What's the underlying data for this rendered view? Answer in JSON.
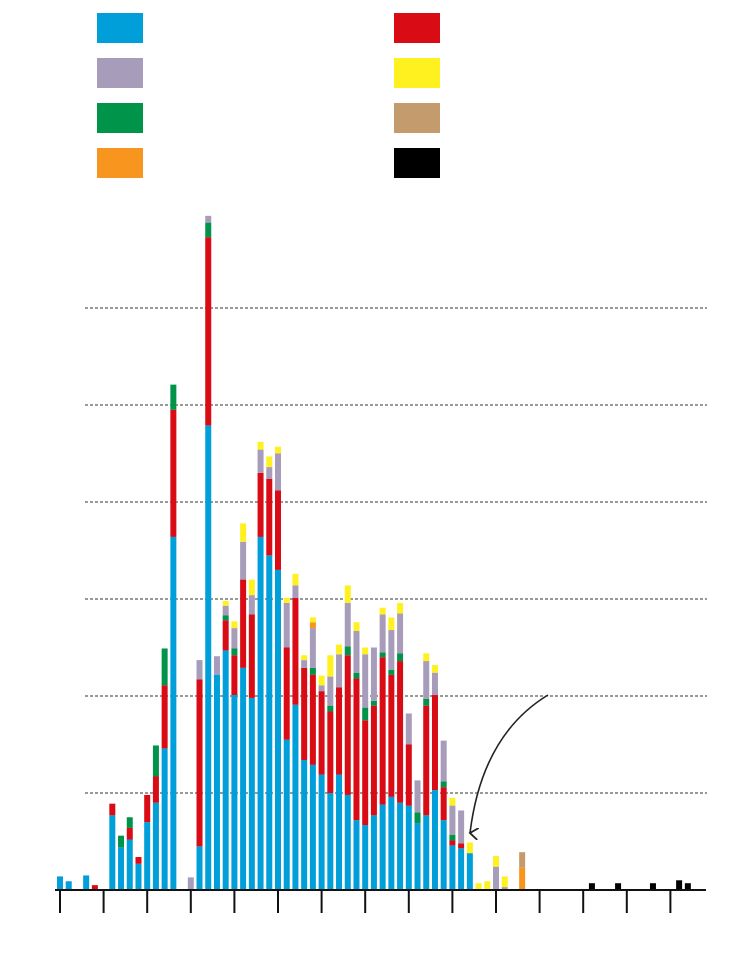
{
  "chart_data": {
    "type": "bar",
    "stacked": true,
    "grid": true,
    "categories": [
      null,
      null,
      null,
      null,
      null,
      null,
      null,
      null,
      null,
      null,
      null,
      null,
      null,
      null,
      null,
      null,
      null,
      null,
      null,
      null,
      null,
      null,
      null,
      null,
      null,
      null,
      null,
      null,
      null,
      null,
      null,
      null,
      null,
      null,
      null,
      null,
      null,
      null,
      null,
      null,
      null,
      null,
      null,
      null,
      null,
      null,
      null,
      null,
      null,
      null,
      null,
      null,
      null,
      null,
      null,
      null,
      null,
      null,
      null,
      null,
      null,
      null,
      null,
      null,
      null,
      null,
      null,
      null,
      null,
      null,
      null,
      null,
      null,
      null
    ],
    "ylim": [
      0,
      70
    ],
    "yticks": [
      10,
      20,
      30,
      40,
      50,
      60
    ],
    "series": [
      {
        "color": "#009fda",
        "values": [
          1.4,
          0.9,
          0,
          1.5,
          0,
          0,
          7.7,
          4.4,
          5.2,
          2.7,
          7.0,
          9.0,
          14.6,
          36.4,
          0,
          0,
          4.5,
          47.9,
          22.2,
          24.7,
          20.1,
          22.9,
          19.8,
          36.4,
          34.5,
          33.0,
          15.5,
          19.1,
          13.4,
          12.9,
          11.9,
          10.0,
          11.9,
          9.8,
          7.2,
          6.7,
          7.7,
          8.8,
          9.6,
          9.0,
          8.7,
          6.9,
          7.7,
          10.3,
          7.2,
          4.6,
          4.3,
          3.8,
          0,
          0,
          0,
          0,
          0,
          0,
          0,
          0,
          0,
          0,
          0,
          0,
          0,
          0,
          0,
          0,
          0,
          0,
          0,
          0,
          0,
          0,
          0,
          0,
          0,
          0
        ]
      },
      {
        "color": "#d90b14",
        "values": [
          0,
          0,
          0,
          0,
          0.5,
          0,
          1.2,
          0,
          1.2,
          0.7,
          2.8,
          2.7,
          6.5,
          13.1,
          0,
          0,
          17.2,
          19.4,
          0,
          3.1,
          4.1,
          9.1,
          8.6,
          6.6,
          7.9,
          8.2,
          9.5,
          11.0,
          9.5,
          9.3,
          8.6,
          8.4,
          9.0,
          14.4,
          14.6,
          10.8,
          11.3,
          15.2,
          12.6,
          14.6,
          6.3,
          0,
          11.3,
          9.8,
          3.4,
          0.5,
          0.5,
          0,
          0,
          0,
          0,
          0,
          0,
          0,
          0,
          0,
          0,
          0,
          0,
          0,
          0,
          0,
          0,
          0,
          0,
          0,
          0,
          0,
          0,
          0,
          0,
          0,
          0,
          0
        ]
      },
      {
        "color": "#00944a",
        "values": [
          0,
          0,
          0,
          0,
          0,
          0,
          0,
          1.2,
          1.1,
          0,
          0,
          3.2,
          3.8,
          2.6,
          0,
          0,
          0,
          1.5,
          0,
          0.5,
          0.7,
          0,
          0,
          0,
          0,
          0,
          0,
          0,
          0,
          0.7,
          0,
          0.6,
          0,
          0.9,
          0.6,
          1.3,
          0.5,
          0.5,
          0.5,
          0.8,
          0,
          1.1,
          0.7,
          0,
          0.6,
          0.6,
          0,
          0,
          0,
          0,
          0,
          0,
          0,
          0,
          0,
          0,
          0,
          0,
          0,
          0,
          0,
          0,
          0,
          0,
          0,
          0,
          0,
          0,
          0,
          0,
          0,
          0,
          0,
          0
        ]
      },
      {
        "color": "#a79cb9",
        "values": [
          0,
          0,
          0,
          0,
          0,
          0,
          0,
          0,
          0,
          0,
          0,
          0,
          0,
          0,
          0,
          1.3,
          2.0,
          0.7,
          1.9,
          1.0,
          2.1,
          3.9,
          2.0,
          2.4,
          1.2,
          3.8,
          4.6,
          1.3,
          0.8,
          4.1,
          0.6,
          3.0,
          3.4,
          4.5,
          4.3,
          5.5,
          5.5,
          3.9,
          4.1,
          4.1,
          3.2,
          3.3,
          3.9,
          2.3,
          4.2,
          3.0,
          3.4,
          0,
          0,
          0,
          2.4,
          0.3,
          0,
          0,
          0,
          0,
          0,
          0,
          0,
          0,
          0,
          0,
          0,
          0,
          0,
          0,
          0,
          0,
          0,
          0,
          0,
          0,
          0,
          0
        ]
      },
      {
        "color": "#f7951f",
        "values": [
          0,
          0,
          0,
          0,
          0,
          0,
          0,
          0,
          0,
          0,
          0,
          0,
          0,
          0,
          0,
          0,
          0,
          0,
          0,
          0,
          0,
          0,
          0,
          0,
          0,
          0,
          0,
          0,
          0,
          0.6,
          0,
          0,
          0,
          0,
          0,
          0,
          0,
          0,
          0,
          0,
          0,
          0,
          0,
          0,
          0,
          0,
          0,
          0,
          0,
          0,
          0,
          0,
          0,
          2.3,
          0,
          0,
          0,
          0,
          0,
          0,
          0,
          0,
          0,
          0,
          0,
          0,
          0,
          0,
          0,
          0,
          0,
          0,
          0,
          0
        ]
      },
      {
        "color": "#fff01f",
        "values": [
          0,
          0,
          0,
          0,
          0,
          0,
          0,
          0,
          0,
          0,
          0,
          0,
          0,
          0,
          0,
          0,
          0,
          0,
          0,
          0.5,
          0.7,
          1.9,
          1.6,
          0.8,
          1.1,
          0.7,
          0.5,
          1.2,
          0.5,
          0.5,
          1.0,
          2.2,
          1.0,
          1.8,
          0.9,
          0.7,
          0,
          0.7,
          1.3,
          1.1,
          0,
          0,
          0.8,
          0.8,
          0,
          0.8,
          0,
          1.1,
          0.7,
          0.9,
          1.1,
          1.1,
          0,
          0,
          0,
          0,
          0,
          0,
          0,
          0,
          0,
          0,
          0,
          0,
          0,
          0,
          0,
          0,
          0,
          0,
          0,
          0,
          0,
          0
        ]
      },
      {
        "color": "#c49b6c",
        "values": [
          0,
          0,
          0,
          0,
          0,
          0,
          0,
          0,
          0,
          0,
          0,
          0,
          0,
          0,
          0,
          0,
          0,
          0,
          0,
          0,
          0,
          0,
          0,
          0,
          0,
          0,
          0,
          0,
          0,
          0,
          0,
          0,
          0,
          0,
          0,
          0,
          0,
          0,
          0,
          0,
          0,
          0,
          0,
          0,
          0,
          0,
          0,
          0,
          0,
          0,
          0,
          0,
          0,
          1.6,
          0,
          0,
          0,
          0,
          0,
          0,
          0,
          0,
          0,
          0,
          0,
          0,
          0,
          0,
          0,
          0,
          0,
          0,
          0,
          0
        ]
      },
      {
        "color": "#000000",
        "values": [
          0,
          0,
          0,
          0,
          0,
          0,
          0,
          0,
          0,
          0,
          0,
          0,
          0,
          0,
          0,
          0,
          0,
          0,
          0,
          0,
          0,
          0,
          0,
          0,
          0,
          0,
          0,
          0,
          0,
          0,
          0,
          0,
          0,
          0,
          0,
          0,
          0,
          0,
          0,
          0,
          0,
          0,
          0,
          0,
          0,
          0,
          0,
          0,
          0,
          0,
          0,
          0,
          0,
          0,
          0,
          0,
          0,
          0,
          0,
          0,
          0,
          0.7,
          0,
          0,
          0.7,
          0,
          0,
          0,
          0.7,
          0,
          0,
          1.0,
          0.7,
          0
        ]
      }
    ]
  }
}
